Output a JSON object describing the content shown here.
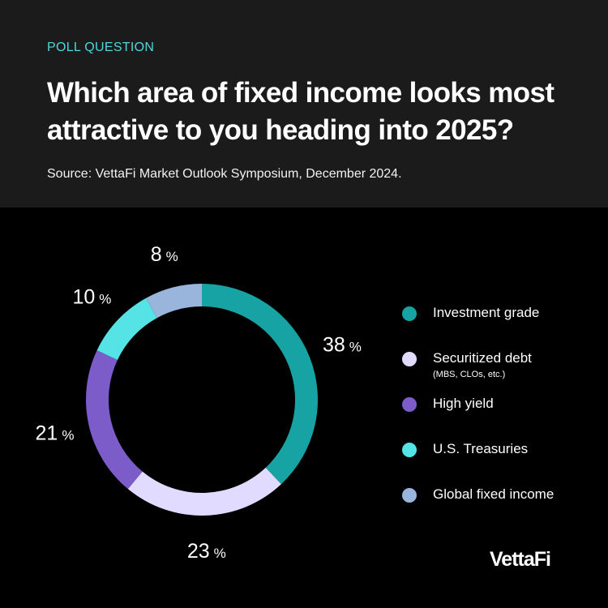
{
  "header": {
    "eyebrow": "POLL QUESTION",
    "title": "Which area of fixed income looks most attractive to you heading into 2025?",
    "source": "Source: VettaFi Market Outlook Symposium, December 2024."
  },
  "colors": {
    "background": "#000000",
    "header_background": "#1b1b1b",
    "accent": "#4fd6dc"
  },
  "chart_data": {
    "type": "pie",
    "style": "donut",
    "categories": [
      "Investment grade",
      "Securitized debt",
      "High yield",
      "U.S. Treasuries",
      "Global fixed income"
    ],
    "values": [
      38,
      23,
      21,
      10,
      8
    ],
    "value_labels": [
      "38",
      "23",
      "21",
      "10",
      "8"
    ],
    "unit": "%",
    "colors": [
      "#17a3a3",
      "#e0dbff",
      "#7b5cc9",
      "#55e3e6",
      "#9ab5dc"
    ],
    "legend_notes": [
      "",
      "(MBS, CLOs, etc.)",
      "",
      "",
      ""
    ],
    "legend_position": "right"
  },
  "brand": {
    "logo_text": "VettaFi"
  }
}
